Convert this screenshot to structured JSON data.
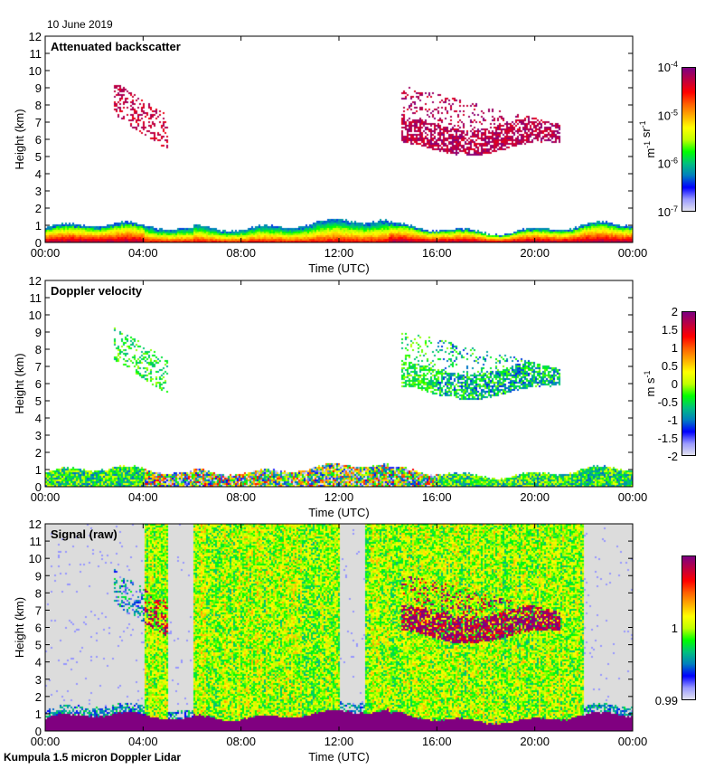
{
  "date_label": "10 June 2019",
  "footer_label": "Kumpula 1.5 micron Doppler Lidar",
  "chart_data": [
    {
      "type": "heatmap",
      "title": "Attenuated backscatter",
      "xlabel": "Time (UTC)",
      "ylabel": "Height (km)",
      "xlim": [
        0,
        24
      ],
      "ylim": [
        0,
        12
      ],
      "x_ticks": [
        "00:00",
        "04:00",
        "08:00",
        "12:00",
        "16:00",
        "20:00",
        "00:00"
      ],
      "y_ticks": [
        "0",
        "1",
        "2",
        "3",
        "4",
        "5",
        "6",
        "7",
        "8",
        "9",
        "10",
        "11",
        "12"
      ],
      "colorbar": {
        "label": "m-1 sr-1",
        "scale": "log",
        "range": [
          1e-07,
          0.0001
        ],
        "ticks": [
          {
            "base": "10",
            "exp": "-4"
          },
          {
            "base": "10",
            "exp": "-5"
          },
          {
            "base": "10",
            "exp": "-6"
          },
          {
            "base": "10",
            "exp": "-7"
          }
        ]
      },
      "features": [
        {
          "name": "boundary layer",
          "time_range": [
            0,
            24
          ],
          "height_top_km": 1.1
        },
        {
          "name": "cloud 1",
          "time_range": [
            2.8,
            5.0
          ],
          "height_range_km": [
            6.0,
            9.0
          ]
        },
        {
          "name": "cloud 2",
          "time_range": [
            14.5,
            21.0
          ],
          "height_range_km": [
            5.2,
            9.6
          ]
        }
      ]
    },
    {
      "type": "heatmap",
      "title": "Doppler velocity",
      "xlabel": "Time (UTC)",
      "ylabel": "Height (km)",
      "xlim": [
        0,
        24
      ],
      "ylim": [
        0,
        12
      ],
      "x_ticks": [
        "00:00",
        "04:00",
        "08:00",
        "12:00",
        "16:00",
        "20:00",
        "00:00"
      ],
      "y_ticks": [
        "0",
        "1",
        "2",
        "3",
        "4",
        "5",
        "6",
        "7",
        "8",
        "9",
        "10",
        "11",
        "12"
      ],
      "colorbar": {
        "label": "m s-1",
        "scale": "linear",
        "range": [
          -2,
          2
        ],
        "ticks": [
          "2",
          "1.5",
          "1",
          "0.5",
          "0",
          "-0.5",
          "-1",
          "-1.5",
          "-2"
        ]
      }
    },
    {
      "type": "heatmap",
      "title": "Signal (raw)",
      "xlabel": "Time (UTC)",
      "ylabel": "Height (km)",
      "xlim": [
        0,
        24
      ],
      "ylim": [
        0,
        12
      ],
      "x_ticks": [
        "00:00",
        "04:00",
        "08:00",
        "12:00",
        "16:00",
        "20:00",
        "00:00"
      ],
      "y_ticks": [
        "0",
        "1",
        "2",
        "3",
        "4",
        "5",
        "6",
        "7",
        "8",
        "9",
        "10",
        "11",
        "12"
      ],
      "colorbar": {
        "label": "",
        "scale": "linear",
        "range": [
          0.99,
          1.01
        ],
        "ticks": [
          "1",
          "0.99"
        ]
      },
      "no_data_intervals_utc": [
        [
          0,
          4.0
        ],
        [
          5.0,
          6.0
        ],
        [
          12.0,
          13.0
        ],
        [
          22.0,
          24
        ]
      ]
    }
  ],
  "colors": {
    "no_data_gray": "#dcdcdc",
    "colormap": [
      "#e6e6f0",
      "#9c9cff",
      "#0000ff",
      "#0080c0",
      "#00c080",
      "#00ff00",
      "#c0ff00",
      "#ffff00",
      "#ffb000",
      "#ff6000",
      "#ff0000",
      "#c00040",
      "#800080"
    ]
  }
}
